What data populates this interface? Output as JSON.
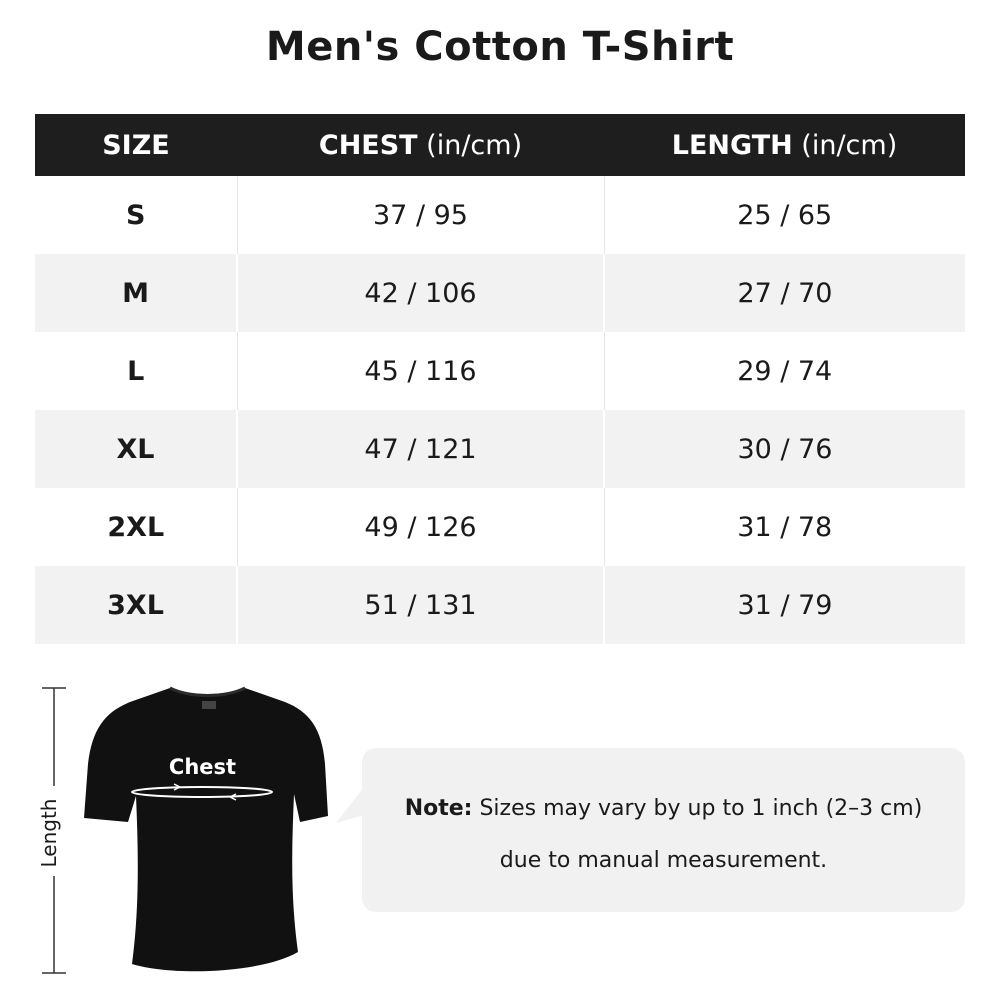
{
  "title": "Men's Cotton T-Shirt",
  "table": {
    "headers": [
      {
        "label": "SIZE",
        "unit": ""
      },
      {
        "label": "CHEST",
        "unit": " (in/cm)"
      },
      {
        "label": "LENGTH",
        "unit": " (in/cm)"
      }
    ],
    "rows": [
      {
        "size": "S",
        "chest": "37 / 95",
        "length": "25 / 65"
      },
      {
        "size": "M",
        "chest": "42 / 106",
        "length": "27 / 70"
      },
      {
        "size": "L",
        "chest": "45 / 116",
        "length": "29 / 74"
      },
      {
        "size": "XL",
        "chest": "47 / 121",
        "length": "30 / 76"
      },
      {
        "size": "2XL",
        "chest": "49 / 126",
        "length": "31 / 78"
      },
      {
        "size": "3XL",
        "chest": "51 / 131",
        "length": "31 / 79"
      }
    ]
  },
  "diagram": {
    "chest_label": "Chest",
    "length_label": "Length",
    "shirt_color": "#111111"
  },
  "note": {
    "prefix": "Note:",
    "line1": " Sizes may vary by up to 1 inch (2–3 cm)",
    "line2": "due to manual measurement."
  }
}
